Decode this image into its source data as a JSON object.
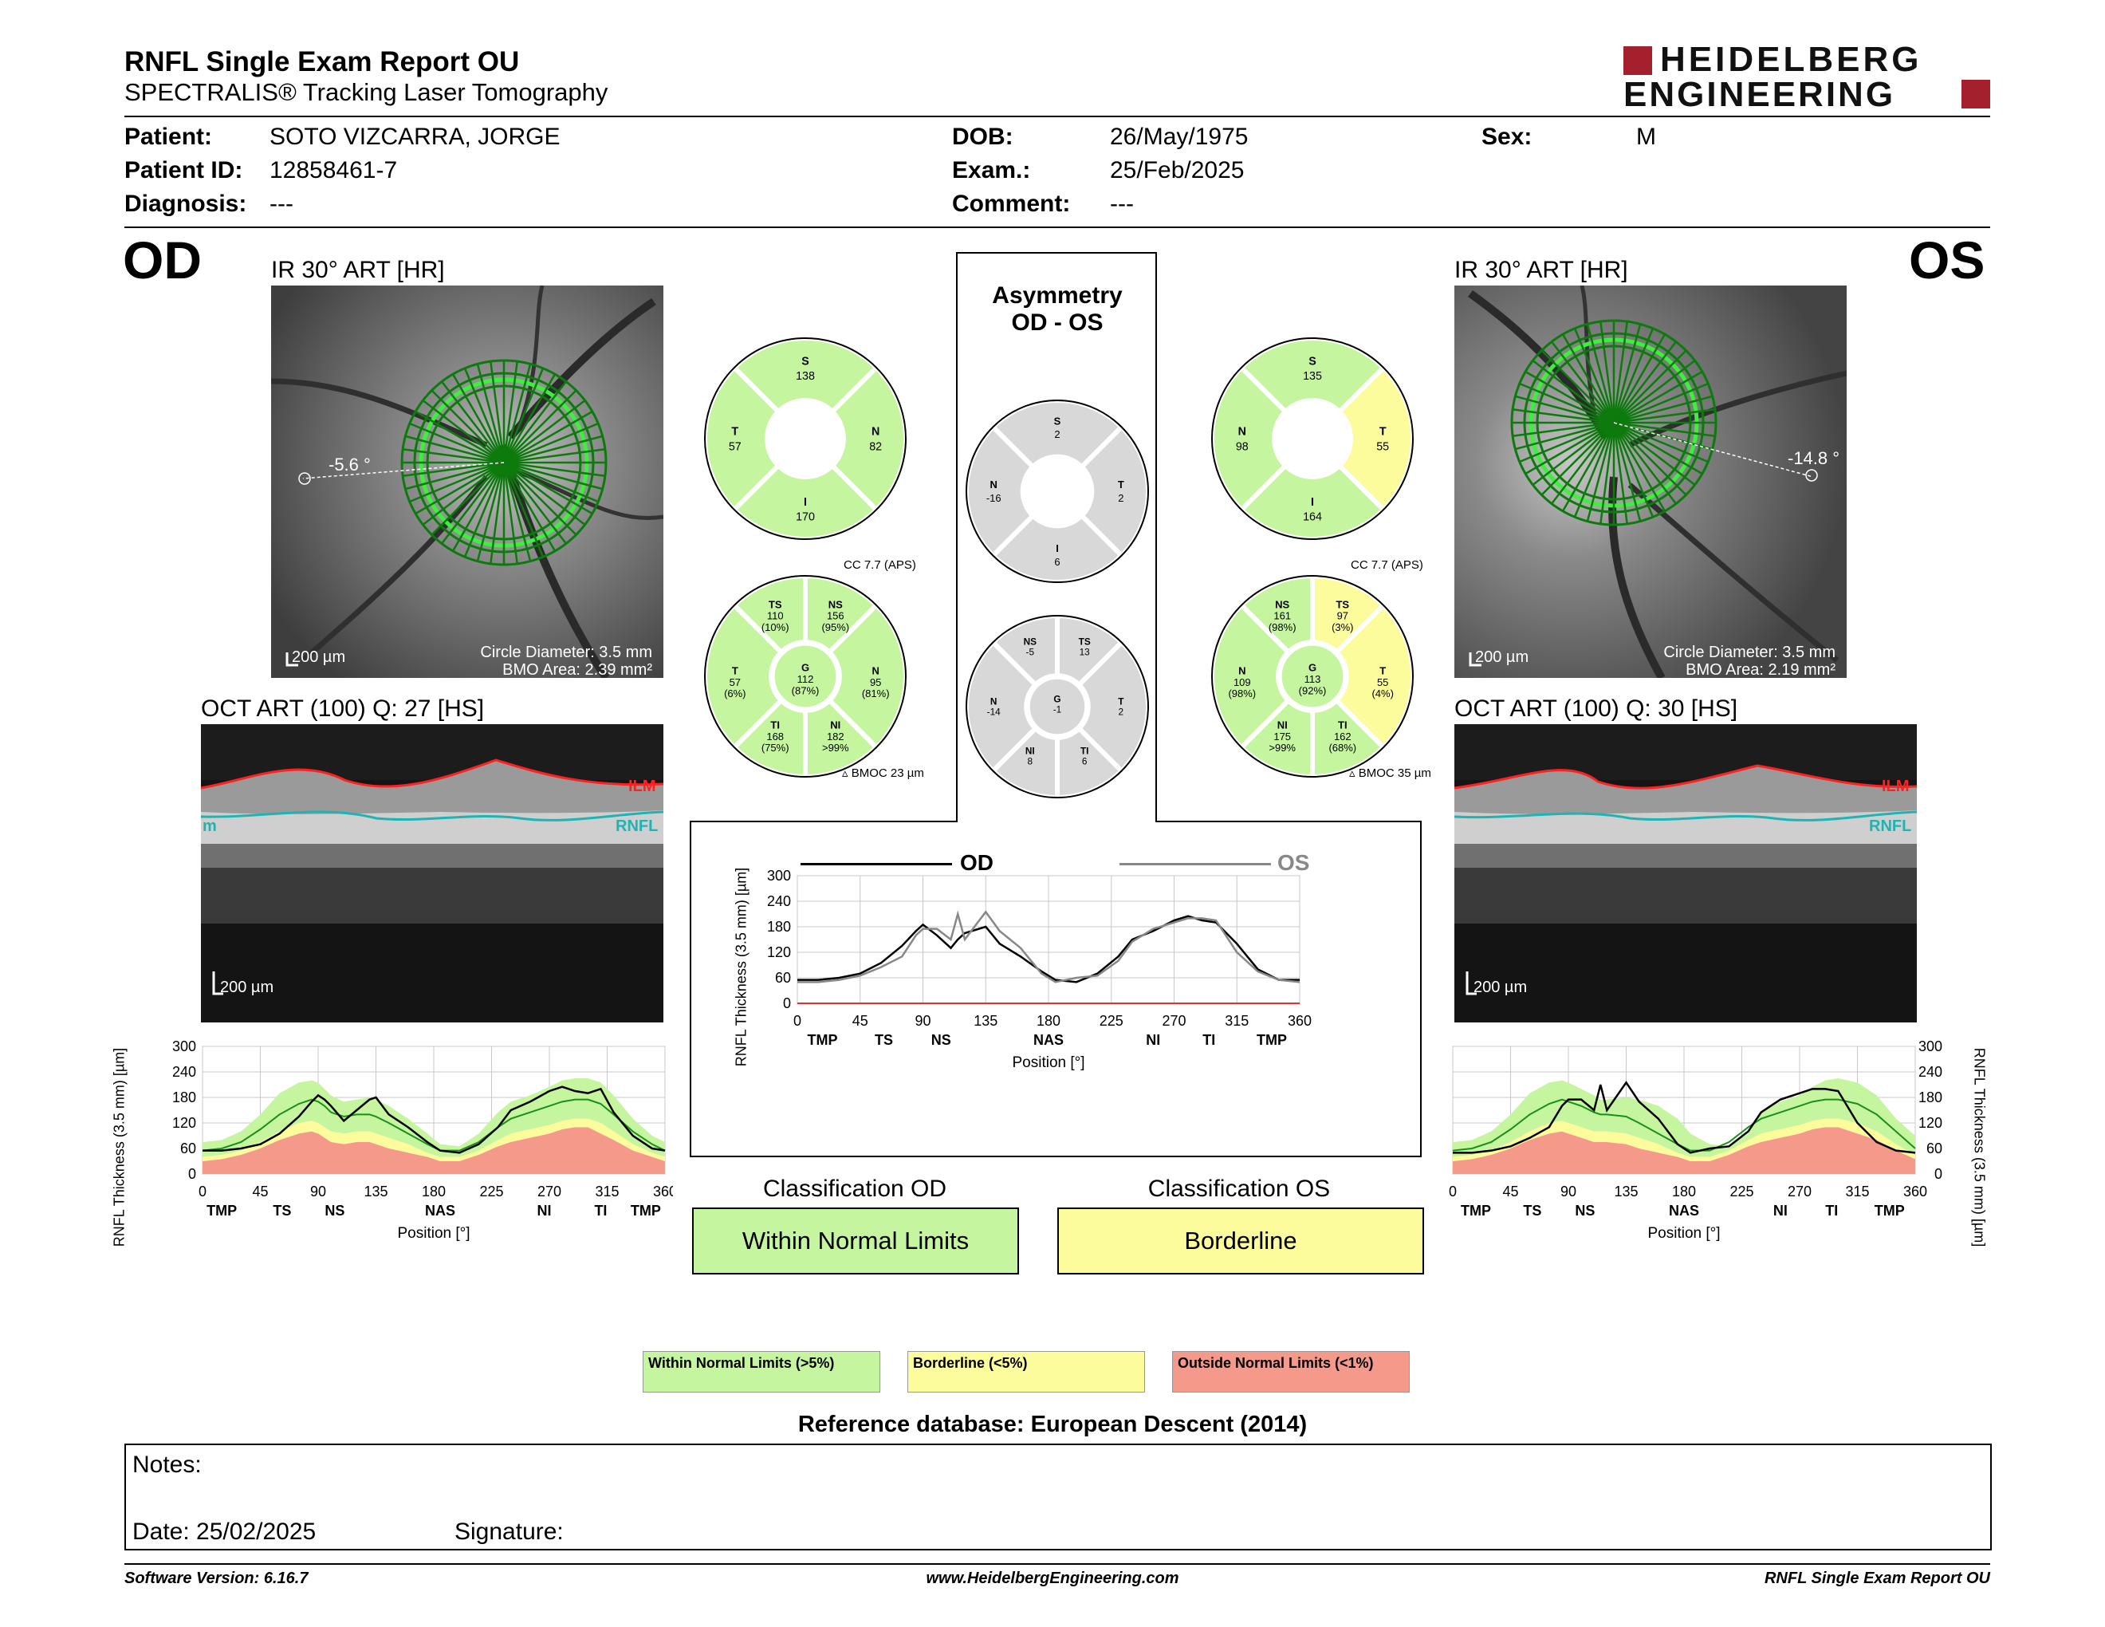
{
  "header": {
    "title": "RNFL Single Exam Report OU",
    "subtitle": "SPECTRALIS® Tracking Laser Tomography",
    "logo_line1": "HEIDELBERG",
    "logo_line2": "ENGINEERING"
  },
  "patient": {
    "name_label": "Patient:",
    "name": "SOTO VIZCARRA, JORGE",
    "id_label": "Patient ID:",
    "id": "12858461-7",
    "diagnosis_label": "Diagnosis:",
    "diagnosis": "---",
    "dob_label": "DOB:",
    "dob": "26/May/1975",
    "exam_label": "Exam.:",
    "exam": "25/Feb/2025",
    "comment_label": "Comment:",
    "comment": "---",
    "sex_label": "Sex:",
    "sex": "M"
  },
  "od": {
    "eye": "OD",
    "ir_title": "IR 30° ART [HR]",
    "angle": "-5.6 °",
    "scale": "200 µm",
    "circle_diameter": "Circle Diameter: 3.5 mm",
    "bmo_area": "BMO Area: 2.39 mm²",
    "oct_title": "OCT ART (100) Q: 27 [HS]",
    "oct_scale": "200 µm",
    "ilm": "ILM",
    "rnfl": "RNFL",
    "rnfl_left": "m",
    "q4": {
      "S": "S",
      "S_v": "138",
      "T": "T",
      "T_v": "57",
      "N": "N",
      "N_v": "82",
      "I": "I",
      "I_v": "170"
    },
    "cc": "CC 7.7 (APS)",
    "sectors": {
      "TS": "TS",
      "TS_v": "110",
      "TS_p": "(10%)",
      "NS": "NS",
      "NS_v": "156",
      "NS_p": "(95%)",
      "T": "T",
      "T_v": "57",
      "T_p": "(6%)",
      "G": "G",
      "G_v": "112",
      "G_p": "(87%)",
      "N": "N",
      "N_v": "95",
      "N_p": "(81%)",
      "TI": "TI",
      "TI_v": "168",
      "TI_p": "(75%)",
      "NI": "NI",
      "NI_v": "182",
      "NI_p": ">99%"
    },
    "bmoc": "BMOC 23 µm",
    "classification_title": "Classification OD",
    "classification": "Within Normal Limits"
  },
  "os": {
    "eye": "OS",
    "ir_title": "IR 30° ART [HR]",
    "angle": "-14.8 °",
    "scale": "200 µm",
    "circle_diameter": "Circle Diameter: 3.5 mm",
    "bmo_area": "BMO Area: 2.19 mm²",
    "oct_title": "OCT ART (100) Q: 30 [HS]",
    "oct_scale": "200 µm",
    "ilm": "ILM",
    "rnfl": "RNFL",
    "q4": {
      "S": "S",
      "S_v": "135",
      "N": "N",
      "N_v": "98",
      "T": "T",
      "T_v": "55",
      "I": "I",
      "I_v": "164"
    },
    "cc": "CC 7.7 (APS)",
    "sectors": {
      "NS": "NS",
      "NS_v": "161",
      "NS_p": "(98%)",
      "TS": "TS",
      "TS_v": "97",
      "TS_p": "(3%)",
      "N": "N",
      "N_v": "109",
      "N_p": "(98%)",
      "G": "G",
      "G_v": "113",
      "G_p": "(92%)",
      "T": "T",
      "T_v": "55",
      "T_p": "(4%)",
      "NI": "NI",
      "NI_v": "175",
      "NI_p": ">99%",
      "TI": "TI",
      "TI_v": "162",
      "TI_p": "(68%)"
    },
    "bmoc": "BMOC 35 µm",
    "classification_title": "Classification OS",
    "classification": "Borderline"
  },
  "asymmetry": {
    "title1": "Asymmetry",
    "title2": "OD - OS",
    "q4": {
      "S": "S",
      "S_v": "2",
      "N": "N",
      "N_v": "-16",
      "T": "T",
      "T_v": "2",
      "I": "I",
      "I_v": "6"
    },
    "sectors": {
      "NS": "NS",
      "NS_v": "-5",
      "TS": "TS",
      "TS_v": "13",
      "N": "N",
      "N_v": "-14",
      "G": "G",
      "G_v": "-1",
      "T": "T",
      "T_v": "2",
      "NI": "NI",
      "NI_v": "8",
      "TI": "TI",
      "TI_v": "6"
    },
    "legend_od": "OD",
    "legend_os": "OS"
  },
  "chart_data": [
    {
      "type": "line",
      "name_ref": "od-profile",
      "ylabel": "RNFL Thickness (3.5 mm) [µm]",
      "xlabel": "Position [°]",
      "xlim": [
        0,
        360
      ],
      "ylim": [
        0,
        300
      ],
      "x_ticks": [
        "0",
        "45",
        "90",
        "135",
        "180",
        "225",
        "270",
        "315",
        "360"
      ],
      "y_ticks": [
        "0",
        "60",
        "120",
        "180",
        "240",
        "300"
      ],
      "sector_labels": [
        "TMP",
        "TS",
        "NS",
        "NAS",
        "NI",
        "TI",
        "TMP"
      ],
      "sector_positions": [
        15,
        62,
        103,
        185,
        266,
        310,
        345
      ],
      "x": [
        0,
        15,
        30,
        45,
        60,
        75,
        85,
        90,
        95,
        100,
        110,
        120,
        130,
        135,
        145,
        160,
        175,
        185,
        200,
        215,
        230,
        240,
        255,
        270,
        280,
        290,
        300,
        310,
        320,
        335,
        350,
        360
      ],
      "series": [
        {
          "values": [
            55,
            55,
            60,
            70,
            95,
            135,
            170,
            185,
            175,
            160,
            125,
            150,
            175,
            180,
            140,
            110,
            75,
            55,
            50,
            70,
            110,
            150,
            170,
            195,
            205,
            195,
            190,
            200,
            145,
            90,
            60,
            55
          ]
        }
      ],
      "normal_upper": [
        75,
        80,
        100,
        140,
        190,
        215,
        220,
        215,
        200,
        185,
        170,
        175,
        180,
        175,
        160,
        130,
        95,
        70,
        65,
        95,
        145,
        170,
        185,
        205,
        220,
        225,
        225,
        215,
        185,
        130,
        90,
        75
      ],
      "normal_mean": [
        55,
        60,
        75,
        105,
        140,
        165,
        175,
        170,
        160,
        145,
        135,
        140,
        140,
        135,
        120,
        95,
        70,
        55,
        55,
        75,
        110,
        130,
        145,
        160,
        170,
        175,
        175,
        165,
        140,
        100,
        70,
        55
      ],
      "borderline_lower": [
        40,
        45,
        55,
        75,
        100,
        120,
        125,
        120,
        110,
        100,
        95,
        100,
        100,
        95,
        85,
        70,
        50,
        40,
        40,
        55,
        80,
        95,
        105,
        115,
        125,
        130,
        130,
        120,
        100,
        70,
        50,
        40
      ],
      "outside_lower": [
        30,
        35,
        45,
        60,
        80,
        95,
        100,
        95,
        85,
        75,
        70,
        75,
        75,
        70,
        60,
        50,
        40,
        30,
        30,
        45,
        65,
        75,
        85,
        95,
        105,
        110,
        110,
        95,
        80,
        55,
        40,
        30
      ]
    },
    {
      "type": "line",
      "name_ref": "asym-profile",
      "ylabel": "RNFL Thickness (3.5 mm) [µm]",
      "xlabel": "Position [°]",
      "xlim": [
        0,
        360
      ],
      "ylim": [
        0,
        300
      ],
      "x_ticks": [
        "0",
        "45",
        "90",
        "135",
        "180",
        "225",
        "270",
        "315",
        "360"
      ],
      "y_ticks": [
        "0",
        "60",
        "120",
        "180",
        "240",
        "300"
      ],
      "sector_labels": [
        "TMP",
        "TS",
        "NS",
        "NAS",
        "NI",
        "TI",
        "TMP"
      ],
      "sector_positions": [
        18,
        62,
        103,
        180,
        255,
        295,
        340
      ],
      "x": [
        0,
        15,
        30,
        45,
        60,
        75,
        85,
        90,
        100,
        110,
        115,
        120,
        135,
        145,
        160,
        175,
        185,
        200,
        215,
        230,
        240,
        255,
        270,
        280,
        290,
        300,
        315,
        330,
        345,
        360
      ],
      "series": [
        {
          "name": "OD",
          "values": [
            55,
            55,
            60,
            70,
            95,
            135,
            170,
            185,
            160,
            130,
            150,
            165,
            180,
            140,
            110,
            75,
            55,
            50,
            70,
            110,
            150,
            170,
            195,
            205,
            195,
            190,
            140,
            80,
            55,
            55
          ]
        },
        {
          "name": "OS",
          "values": [
            50,
            50,
            55,
            65,
            85,
            110,
            160,
            175,
            175,
            150,
            210,
            150,
            215,
            170,
            130,
            70,
            50,
            60,
            65,
            100,
            145,
            175,
            190,
            200,
            200,
            195,
            120,
            75,
            55,
            50
          ]
        }
      ]
    },
    {
      "type": "line",
      "name_ref": "os-profile",
      "ylabel": "RNFL Thickness (3.5 mm) [µm]",
      "xlabel": "Position [°]",
      "xlim": [
        0,
        360
      ],
      "ylim": [
        0,
        300
      ],
      "x_ticks": [
        "0",
        "45",
        "90",
        "135",
        "180",
        "225",
        "270",
        "315",
        "360"
      ],
      "y_ticks": [
        "0",
        "60",
        "120",
        "180",
        "240",
        "300"
      ],
      "sector_labels": [
        "TMP",
        "TS",
        "NS",
        "NAS",
        "NI",
        "TI",
        "TMP"
      ],
      "sector_positions": [
        18,
        62,
        103,
        180,
        255,
        295,
        340
      ],
      "x": [
        0,
        15,
        30,
        45,
        60,
        75,
        85,
        90,
        100,
        110,
        115,
        120,
        135,
        145,
        160,
        175,
        185,
        200,
        215,
        230,
        240,
        255,
        270,
        280,
        290,
        300,
        315,
        330,
        345,
        360
      ],
      "series": [
        {
          "values": [
            50,
            50,
            55,
            65,
            85,
            110,
            160,
            175,
            175,
            150,
            210,
            150,
            215,
            170,
            130,
            70,
            50,
            60,
            65,
            100,
            145,
            175,
            190,
            200,
            200,
            195,
            120,
            75,
            55,
            50
          ]
        }
      ],
      "normal_upper": [
        75,
        80,
        100,
        140,
        190,
        215,
        220,
        215,
        200,
        185,
        175,
        175,
        180,
        175,
        160,
        130,
        95,
        70,
        65,
        95,
        145,
        170,
        185,
        205,
        220,
        225,
        215,
        185,
        130,
        90
      ],
      "normal_mean": [
        55,
        60,
        75,
        105,
        140,
        165,
        175,
        170,
        160,
        145,
        140,
        140,
        135,
        120,
        95,
        70,
        55,
        55,
        75,
        110,
        130,
        145,
        160,
        170,
        175,
        175,
        165,
        140,
        100,
        60
      ],
      "borderline_lower": [
        40,
        45,
        55,
        75,
        100,
        120,
        125,
        120,
        110,
        100,
        100,
        100,
        95,
        85,
        70,
        50,
        40,
        40,
        55,
        80,
        95,
        105,
        115,
        125,
        130,
        130,
        120,
        100,
        70,
        45
      ],
      "outside_lower": [
        30,
        35,
        45,
        60,
        80,
        95,
        100,
        95,
        85,
        75,
        75,
        75,
        70,
        60,
        50,
        40,
        30,
        30,
        45,
        65,
        75,
        85,
        95,
        105,
        110,
        110,
        95,
        80,
        55,
        35
      ]
    }
  ],
  "legend": {
    "within": "Within Normal Limits (>5%)",
    "borderline": "Borderline (<5%)",
    "outside": "Outside Normal Limits (<1%)"
  },
  "reference_db": "Reference database: European Descent (2014)",
  "notes": {
    "label": "Notes:",
    "date": "Date: 25/02/2025",
    "signature": "Signature:"
  },
  "footer": {
    "software": "Software Version: 6.16.7",
    "website": "www.HeidelbergEngineering.com",
    "report": "RNFL Single Exam Report OU"
  },
  "colors": {
    "within": "#c6f5a0",
    "borderline": "#fcfc9c",
    "outside": "#f59a8a",
    "gray": "#d8d8d8",
    "logo": "#a3202c"
  }
}
